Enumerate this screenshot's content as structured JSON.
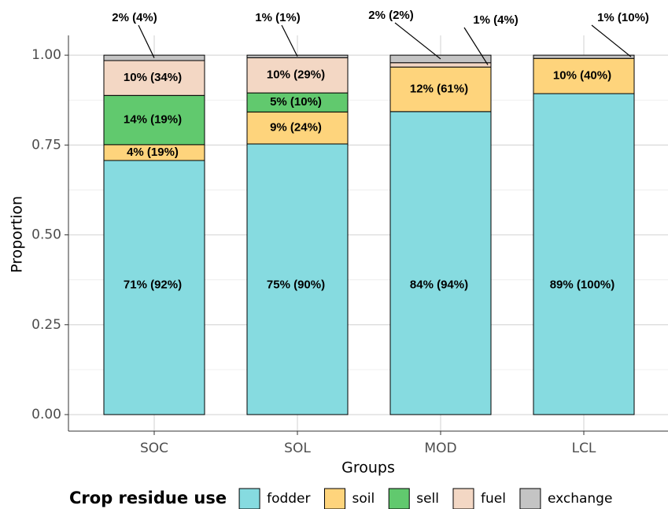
{
  "chart_data": {
    "type": "stacked_bar",
    "xlabel": "Groups",
    "ylabel": "Proportion",
    "categories": [
      "SOC",
      "SOL",
      "MOD",
      "LCL"
    ],
    "ylim": [
      -0.046,
      1.055
    ],
    "yticks": [
      {
        "value": 0,
        "label": "0.00"
      },
      {
        "value": 0.25,
        "label": "0.25"
      },
      {
        "value": 0.5,
        "label": "0.50"
      },
      {
        "value": 0.75,
        "label": "0.75"
      },
      {
        "value": 1,
        "label": "1.00"
      }
    ],
    "grid": true,
    "legend_title": "Crop residue use",
    "legend": "bottom",
    "series": [
      {
        "name": "fodder",
        "color": "#86dbe0",
        "values": [
          0.707,
          0.753,
          0.843,
          0.893
        ],
        "value_labels": [
          "71% (92%)",
          "75% (90%)",
          "84% (94%)",
          "89% (100%)"
        ]
      },
      {
        "name": "soil",
        "color": "#fed47c",
        "values": [
          0.044,
          0.089,
          0.124,
          0.098
        ],
        "value_labels": [
          "4% (19%)",
          "9% (24%)",
          "12% (61%)",
          "10% (40%)"
        ]
      },
      {
        "name": "sell",
        "color": "#61c96e",
        "values": [
          0.137,
          0.053,
          0,
          0
        ],
        "value_labels": [
          "14% (19%)",
          "5% (10%)",
          null,
          null
        ]
      },
      {
        "name": "fuel",
        "color": "#f3d7c4",
        "values": [
          0.097,
          0.098,
          0.012,
          0
        ],
        "value_labels": [
          "10% (34%)",
          "10% (29%)",
          "1% (4%)",
          null
        ]
      },
      {
        "name": "exchange",
        "color": "#c4c4c4",
        "values": [
          0.015,
          0.007,
          0.021,
          0.009
        ],
        "value_labels": [
          "2% (4%)",
          "1% (1%)",
          "2% (2%)",
          "1% (10%)"
        ]
      }
    ]
  }
}
